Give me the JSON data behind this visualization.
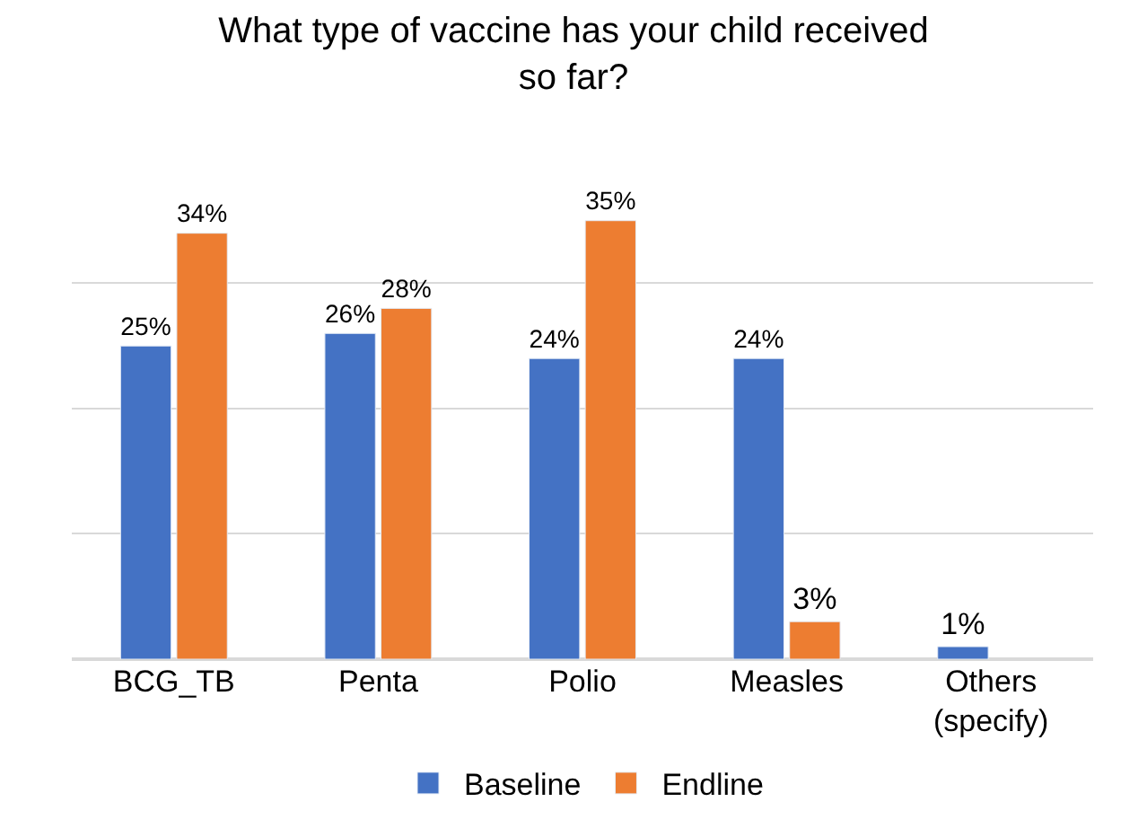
{
  "chart_data": {
    "type": "bar",
    "title": "What type of vaccine has your child received so far?",
    "categories": [
      "BCG_TB",
      "Penta",
      "Polio",
      "Measles",
      "Others (specify)"
    ],
    "series": [
      {
        "name": "Baseline",
        "color": "#4472c4",
        "values": [
          25,
          26,
          24,
          24,
          1
        ],
        "value_labels": [
          "25%",
          "26%",
          "24%",
          "24%",
          "1%"
        ]
      },
      {
        "name": "Endline",
        "color": "#ed7d31",
        "values": [
          34,
          28,
          35,
          3,
          null
        ],
        "value_labels": [
          "34%",
          "28%",
          "35%",
          "3%",
          null
        ]
      }
    ],
    "tick_labels": "x",
    "grid": "y",
    "legend": "bottom"
  }
}
